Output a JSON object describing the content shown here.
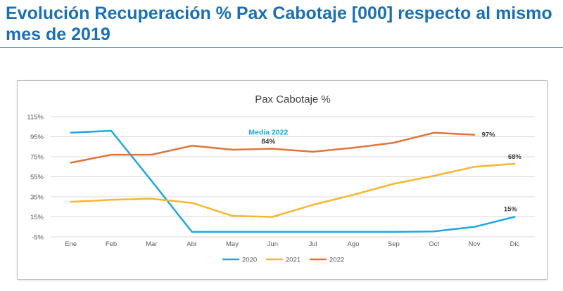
{
  "page": {
    "title": "Evolución Recuperación % Pax Cabotaje [000] respecto al mismo mes de 2019"
  },
  "chart_data": {
    "type": "line",
    "title": "Pax Cabotaje %",
    "categories": [
      "Ene",
      "Feb",
      "Mar",
      "Abr",
      "May",
      "Jun",
      "Jul",
      "Ago",
      "Sep",
      "Oct",
      "Nov",
      "Dic"
    ],
    "ylim": [
      -5,
      115
    ],
    "yticks": [
      -5,
      15,
      35,
      55,
      75,
      95,
      115
    ],
    "ytick_labels": [
      "-5%",
      "15%",
      "35%",
      "55%",
      "75%",
      "95%",
      "115%"
    ],
    "grid": true,
    "legend": "bottom",
    "series": [
      {
        "name": "2020",
        "color": "#1ea7e1",
        "values": [
          99,
          101,
          51,
          0,
          0,
          0,
          0,
          0,
          0,
          0.5,
          5,
          15
        ]
      },
      {
        "name": "2021",
        "color": "#f5b731",
        "values": [
          30,
          32,
          33,
          29,
          16,
          15,
          27,
          37,
          48,
          56,
          65,
          68
        ]
      },
      {
        "name": "2022",
        "color": "#e2743a",
        "values": [
          69,
          77,
          77,
          86,
          82,
          83,
          80,
          84,
          89,
          99,
          97,
          null
        ]
      }
    ],
    "annotations": [
      {
        "text": "Media 2022",
        "color": "#1ea7e1",
        "near": "2022 series, above Jun"
      },
      {
        "text": "84%",
        "color": "#404040",
        "near": "2022 series, above Jun"
      },
      {
        "text": "97%",
        "color": "#404040",
        "near": "2022 Nov end"
      },
      {
        "text": "68%",
        "color": "#404040",
        "near": "2021 Dic end"
      },
      {
        "text": "15%",
        "color": "#404040",
        "near": "2020 Dic end"
      }
    ]
  }
}
